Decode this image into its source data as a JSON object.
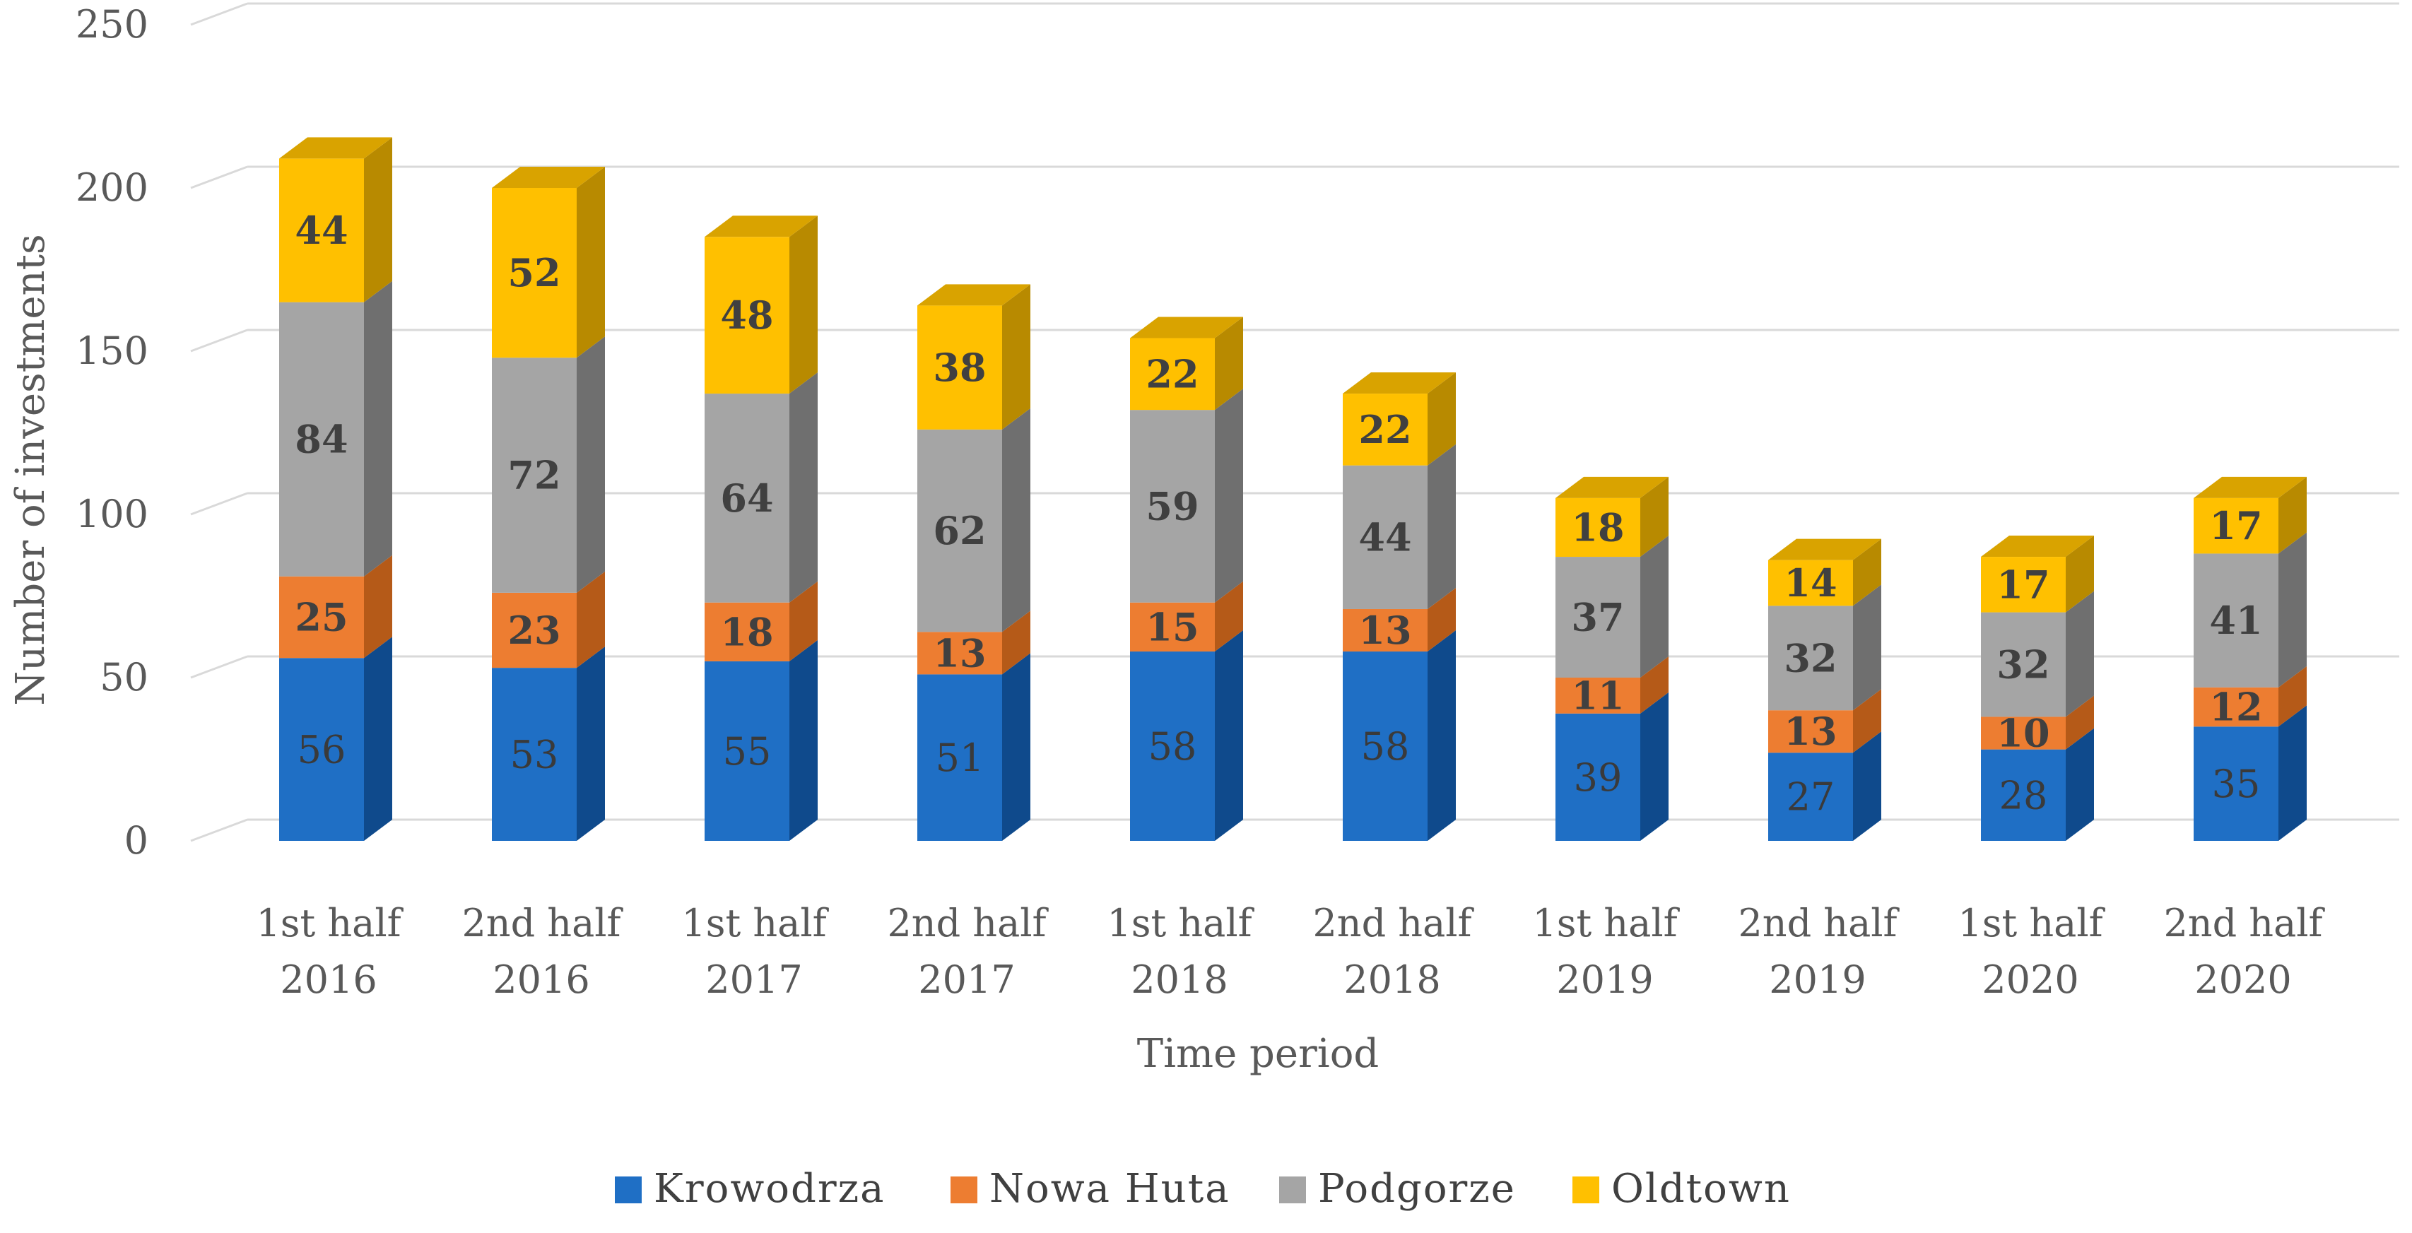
{
  "chart_data": {
    "type": "bar",
    "stacked": true,
    "three_d": true,
    "categories": [
      [
        "1st half",
        "2016"
      ],
      [
        "2nd half",
        "2016"
      ],
      [
        "1st half",
        "2017"
      ],
      [
        "2nd half",
        "2017"
      ],
      [
        "1st half",
        "2018"
      ],
      [
        "2nd half",
        "2018"
      ],
      [
        "1st half",
        "2019"
      ],
      [
        "2nd half",
        "2019"
      ],
      [
        "1st half",
        "2020"
      ],
      [
        "2nd half",
        "2020"
      ]
    ],
    "series": [
      {
        "name": "Krowodrza",
        "color": "#1f6fc5",
        "side": "#0f4a8c",
        "top": "#1a5faa",
        "values": [
          56,
          53,
          55,
          51,
          58,
          58,
          39,
          27,
          28,
          35
        ]
      },
      {
        "name": "Nowa Huta",
        "color": "#ed7d31",
        "side": "#b55a18",
        "top": "#c96a22",
        "values": [
          25,
          23,
          18,
          13,
          15,
          13,
          11,
          13,
          10,
          12
        ]
      },
      {
        "name": "Podgorze",
        "color": "#a5a5a5",
        "side": "#6f6f6f",
        "top": "#8c8c8c",
        "values": [
          84,
          72,
          64,
          62,
          59,
          44,
          37,
          32,
          32,
          41
        ]
      },
      {
        "name": "Oldtown",
        "color": "#ffc000",
        "side": "#b88a00",
        "top": "#d9a300",
        "values": [
          44,
          52,
          48,
          38,
          22,
          22,
          18,
          14,
          17,
          17
        ]
      }
    ],
    "title": "",
    "xlabel": "Time period",
    "ylabel": "Number of investments",
    "ylim": [
      0,
      250
    ],
    "yticks": [
      0,
      50,
      100,
      150,
      200,
      250
    ],
    "grid": true,
    "legend": "bottom"
  }
}
